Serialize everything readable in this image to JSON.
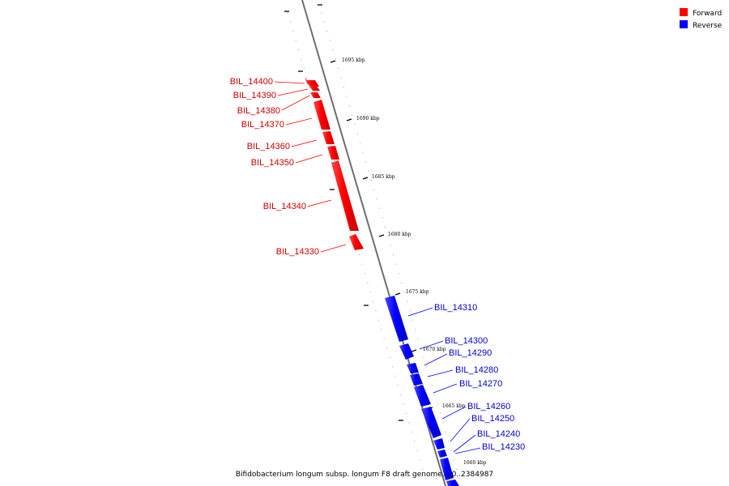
{
  "legend": {
    "items": [
      {
        "label": "Forward",
        "color": "#ff0000"
      },
      {
        "label": "Reverse",
        "color": "#0000ff"
      }
    ]
  },
  "caption": "Bifidobacterium longum subsp. longum F8 draft genome. - 0..2384987",
  "scale": {
    "unit": "kbp",
    "ticks": [
      1695,
      1690,
      1685,
      1680,
      1675,
      1670,
      1665,
      1660
    ]
  },
  "genes": [
    {
      "name": "BIL_14400",
      "strand": "forward"
    },
    {
      "name": "BIL_14390",
      "strand": "forward"
    },
    {
      "name": "BIL_14380",
      "strand": "forward"
    },
    {
      "name": "BIL_14370",
      "strand": "forward"
    },
    {
      "name": "BIL_14360",
      "strand": "forward"
    },
    {
      "name": "BIL_14350",
      "strand": "forward"
    },
    {
      "name": "BIL_14340",
      "strand": "forward"
    },
    {
      "name": "BIL_14330",
      "strand": "forward"
    },
    {
      "name": "BIL_14310",
      "strand": "reverse"
    },
    {
      "name": "BIL_14300",
      "strand": "reverse"
    },
    {
      "name": "BIL_14290",
      "strand": "reverse"
    },
    {
      "name": "BIL_14280",
      "strand": "reverse"
    },
    {
      "name": "BIL_14270",
      "strand": "reverse"
    },
    {
      "name": "BIL_14260",
      "strand": "reverse"
    },
    {
      "name": "BIL_14250",
      "strand": "reverse"
    },
    {
      "name": "BIL_14240",
      "strand": "reverse"
    },
    {
      "name": "BIL_14230",
      "strand": "reverse"
    }
  ]
}
